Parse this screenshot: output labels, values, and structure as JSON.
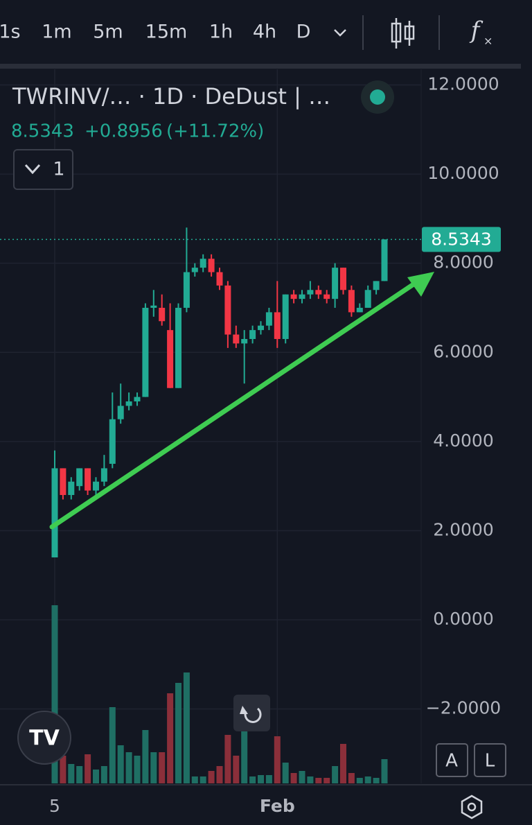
{
  "toolbar": {
    "intervals": [
      "1s",
      "1m",
      "5m",
      "15m",
      "1h",
      "4h",
      "D"
    ]
  },
  "header": {
    "symbol": "TWRINV/… · 1D · DeDust | …",
    "price": "8.5343",
    "change": "+0.8956",
    "change_pct": "(+11.72%)",
    "indicators_count": "1"
  },
  "buttons": {
    "auto": "A",
    "log": "L"
  },
  "chart_data": {
    "type": "candlestick",
    "categories": [
      "5",
      null,
      null,
      null,
      null,
      null,
      null,
      null,
      null,
      null,
      null,
      null,
      null,
      null,
      null,
      null,
      null,
      null,
      null,
      null,
      null,
      null,
      null,
      null,
      null,
      null,
      null,
      "Feb",
      null,
      null,
      null,
      null,
      null,
      null,
      null,
      null,
      null,
      null,
      null,
      null,
      null
    ],
    "open": [
      1.4,
      3.4,
      2.8,
      3.0,
      3.4,
      2.9,
      3.1,
      3.5,
      4.5,
      4.8,
      4.9,
      5.0,
      7.0,
      7.0,
      6.5,
      5.2,
      7.0,
      7.8,
      7.9,
      8.1,
      7.8,
      7.5,
      6.4,
      6.2,
      6.3,
      6.5,
      6.6,
      6.9,
      6.3,
      7.3,
      7.2,
      7.3,
      7.4,
      7.3,
      7.2,
      7.9,
      7.4,
      6.9,
      7.0,
      7.4,
      7.6
    ],
    "high": [
      3.8,
      3.4,
      3.2,
      3.4,
      3.4,
      3.2,
      3.7,
      5.1,
      5.3,
      5.1,
      5.1,
      7.1,
      7.4,
      7.3,
      7.1,
      7.1,
      8.8,
      8.0,
      8.2,
      8.2,
      7.9,
      7.6,
      6.6,
      6.5,
      6.6,
      6.7,
      7.0,
      7.6,
      7.3,
      7.4,
      7.4,
      7.6,
      7.5,
      7.4,
      8.0,
      7.9,
      7.5,
      7.1,
      7.5,
      7.6,
      8.5343
    ],
    "low": [
      1.4,
      2.7,
      2.7,
      2.9,
      2.8,
      2.8,
      3.0,
      3.4,
      4.4,
      4.7,
      4.8,
      5.0,
      6.8,
      6.6,
      5.2,
      5.2,
      6.9,
      7.7,
      7.8,
      7.7,
      7.4,
      6.1,
      6.1,
      5.3,
      6.2,
      6.4,
      6.5,
      6.1,
      6.2,
      7.1,
      7.1,
      7.2,
      7.2,
      7.1,
      7.0,
      7.3,
      6.8,
      6.9,
      7.0,
      7.3,
      7.6
    ],
    "close": [
      3.4,
      2.8,
      3.1,
      3.4,
      2.9,
      3.1,
      3.4,
      4.5,
      4.8,
      4.9,
      5.0,
      7.0,
      7.05,
      6.7,
      5.2,
      7.0,
      7.8,
      7.9,
      8.1,
      7.8,
      7.5,
      6.4,
      6.2,
      6.3,
      6.5,
      6.6,
      6.9,
      6.3,
      7.3,
      7.2,
      7.3,
      7.4,
      7.3,
      7.2,
      7.9,
      7.4,
      6.9,
      7.0,
      7.4,
      7.6,
      8.5343
    ],
    "volume": [
      257,
      40,
      28,
      25,
      42,
      20,
      25,
      110,
      55,
      45,
      40,
      77,
      45,
      45,
      130,
      145,
      160,
      10,
      10,
      18,
      25,
      70,
      40,
      80,
      10,
      12,
      12,
      68,
      30,
      15,
      18,
      10,
      8,
      8,
      25,
      57,
      15,
      8,
      10,
      8,
      35
    ],
    "vlim": [
      0,
      270
    ],
    "up_color": "#22ab94",
    "down_color": "#f23645",
    "up_volume_color": "#1f6f64",
    "down_volume_color": "#8b2f3a",
    "ylim": [
      -3.67,
      12.35
    ],
    "yticks": [
      {
        "value": 12,
        "label": "12.0000"
      },
      {
        "value": 10,
        "label": "10.0000"
      },
      {
        "value": 8,
        "label": "8.0000"
      },
      {
        "value": 6,
        "label": "6.0000"
      },
      {
        "value": 4,
        "label": "4.0000"
      },
      {
        "value": 2,
        "label": "2.0000"
      },
      {
        "value": 0,
        "label": "0.0000"
      },
      {
        "value": -2,
        "label": "−2.0000"
      }
    ],
    "grid": true
  }
}
